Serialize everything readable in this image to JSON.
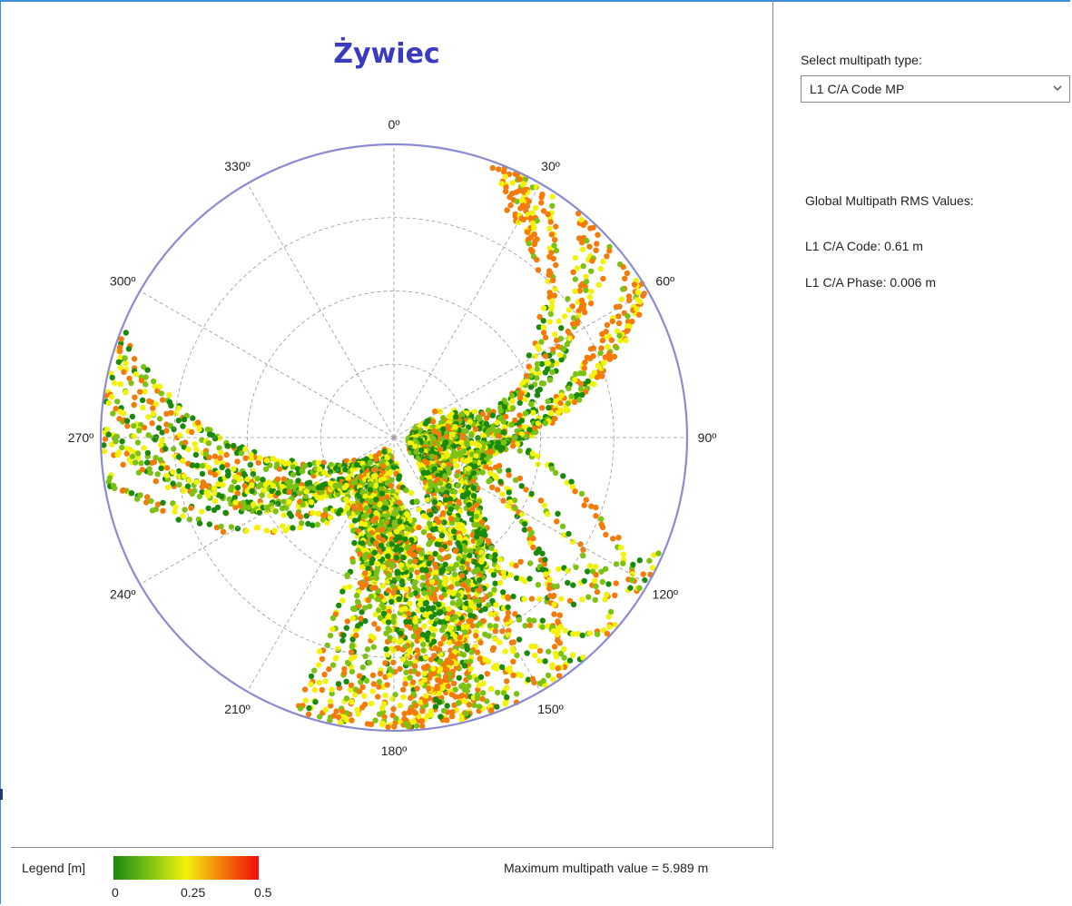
{
  "plot": {
    "title": "Żywiec",
    "angle_labels": [
      "0º",
      "30º",
      "60º",
      "90º",
      "120º",
      "150º",
      "180º",
      "210º",
      "240º",
      "270º",
      "300º",
      "330º"
    ]
  },
  "legend": {
    "label": "Legend [m]",
    "ticks": [
      "0",
      "0.25",
      "0.5"
    ],
    "gradient": [
      "#1a8a0c",
      "#7cc213",
      "#f2f20a",
      "#f47a0a",
      "#f00c06"
    ]
  },
  "max_value_text": "Maximum multipath value = 5.989 m",
  "controls": {
    "select_label": "Select multipath type:",
    "select_value": "L1 C/A Code MP"
  },
  "rms": {
    "heading": "Global Multipath RMS Values:",
    "code": "L1 C/A Code: 0.61 m",
    "phase": "L1 C/A Phase: 0.006 m"
  },
  "colors": {
    "title": "#3b3bbf",
    "outer_circle": "#8b8bd0",
    "frame": "#3b8fd8"
  }
}
